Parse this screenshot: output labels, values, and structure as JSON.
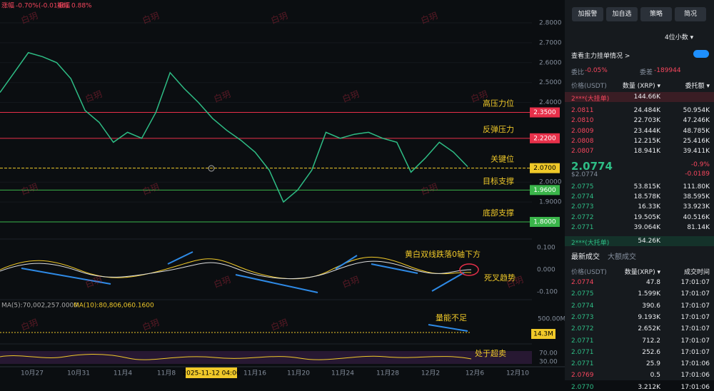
{
  "chart": {
    "stats": {
      "change_label": "涨幅",
      "change": "-0.70%(-0.0146)",
      "amp_label": "振幅",
      "amp": "0.88%"
    },
    "watermark": "白玥",
    "price_ticks": [
      {
        "value": 2.8,
        "label": "2.8000"
      },
      {
        "value": 2.7,
        "label": "2.7000"
      },
      {
        "value": 2.6,
        "label": "2.6000"
      },
      {
        "value": 2.5,
        "label": "2.5000"
      },
      {
        "value": 2.4,
        "label": "2.4000"
      },
      {
        "value": 2.0,
        "label": "2.0000"
      },
      {
        "value": 1.9,
        "label": "1.9000"
      }
    ],
    "levels": [
      {
        "value": 2.35,
        "label": "2.3500",
        "note": "高压力位",
        "color": "#e8304a"
      },
      {
        "value": 2.22,
        "label": "2.2200",
        "note": "反弹压力",
        "color": "#e8304a"
      },
      {
        "value": 2.07,
        "label": "2.0700",
        "note": "关键位",
        "color": "#f0c929"
      },
      {
        "value": 1.96,
        "label": "1.9600",
        "note": "目标支撑",
        "color": "#3ab54a"
      },
      {
        "value": 1.8,
        "label": "1.8000",
        "note": "底部支撑",
        "color": "#3ab54a"
      }
    ],
    "price": [
      2.45,
      2.55,
      2.65,
      2.63,
      2.6,
      2.52,
      2.36,
      2.3,
      2.2,
      2.25,
      2.22,
      2.35,
      2.55,
      2.47,
      2.4,
      2.32,
      2.26,
      2.21,
      2.15,
      2.06,
      1.9,
      1.96,
      2.06,
      2.25,
      2.22,
      2.24,
      2.25,
      2.22,
      2.2,
      2.05,
      2.12,
      2.2,
      2.15,
      2.0774
    ],
    "macd_ticks": [
      {
        "value": 0.1,
        "label": "0.100"
      },
      {
        "value": 0,
        "label": "0.000"
      },
      {
        "value": -0.1,
        "label": "-0.100"
      }
    ],
    "macd_notes": [
      "黄白双线跌落0轴下方",
      "死叉趋势"
    ],
    "volume": {
      "ma5": "MA(5):70,002,257.0000",
      "ma10": "MA(10):80,806,060.1600",
      "tick": "500.00M",
      "current": "14.3M",
      "note": "量能不足"
    },
    "rsi": {
      "ticks": [
        "70.00",
        "30.00"
      ],
      "note": "处于超卖"
    },
    "dates": [
      "10月27",
      "10月31",
      "11月4",
      "11月8",
      "11月16",
      "11月20",
      "11月24",
      "11月28",
      "12月2",
      "12月6",
      "12月10"
    ],
    "crosshair_date": "2025-11-12 04:00"
  },
  "panel": {
    "buttons": [
      "加报警",
      "加自选",
      "策略",
      "简况"
    ],
    "decimals": "4位小数 ▾",
    "main_orders": "查看主力挂单情况 >",
    "ratio_label": "委比",
    "ratio": "-0.05%",
    "diff_label": "委差",
    "diff": "-189944",
    "book_header": [
      "价格(USDT)",
      "数量 (XRP) ▾",
      "委托额 ▾"
    ],
    "big_ask": [
      "2***(大挂单)",
      "144.66K"
    ],
    "asks": [
      [
        "2.0811",
        "24.484K",
        "50.954K"
      ],
      [
        "2.0810",
        "22.703K",
        "47.246K"
      ],
      [
        "2.0809",
        "23.444K",
        "48.785K"
      ],
      [
        "2.0808",
        "12.215K",
        "25.416K"
      ],
      [
        "2.0807",
        "18.941K",
        "39.411K"
      ]
    ],
    "last": "2.0774",
    "last_pct": "-0.9%",
    "last_usd": "$2.0774",
    "last_chg": "-0.0189",
    "bids": [
      [
        "2.0775",
        "53.815K",
        "111.80K"
      ],
      [
        "2.0774",
        "18.578K",
        "38.595K"
      ],
      [
        "2.0773",
        "16.33K",
        "33.923K"
      ],
      [
        "2.0772",
        "19.505K",
        "40.516K"
      ],
      [
        "2.0771",
        "39.064K",
        "81.14K"
      ]
    ],
    "big_bid": [
      "2***(大托单)",
      "54.26K"
    ],
    "tabs": [
      "最新成交",
      "大额成交"
    ],
    "trade_header": [
      "价格(USDT)",
      "数量(XRP) ▾",
      "成交时间"
    ],
    "trades": [
      [
        "2.0774",
        "47.8",
        "17:01:07",
        "sell"
      ],
      [
        "2.0775",
        "1.599K",
        "17:01:07",
        "buy"
      ],
      [
        "2.0774",
        "390.6",
        "17:01:07",
        "buy"
      ],
      [
        "2.0773",
        "9.193K",
        "17:01:07",
        "buy"
      ],
      [
        "2.0772",
        "2.652K",
        "17:01:07",
        "buy"
      ],
      [
        "2.0771",
        "712.2",
        "17:01:07",
        "buy"
      ],
      [
        "2.0771",
        "252.6",
        "17:01:07",
        "buy"
      ],
      [
        "2.0771",
        "25.9",
        "17:01:06",
        "buy"
      ],
      [
        "2.0769",
        "0.5",
        "17:01:06",
        "sell"
      ],
      [
        "2.0770",
        "3.212K",
        "17:01:06",
        "buy"
      ]
    ]
  }
}
